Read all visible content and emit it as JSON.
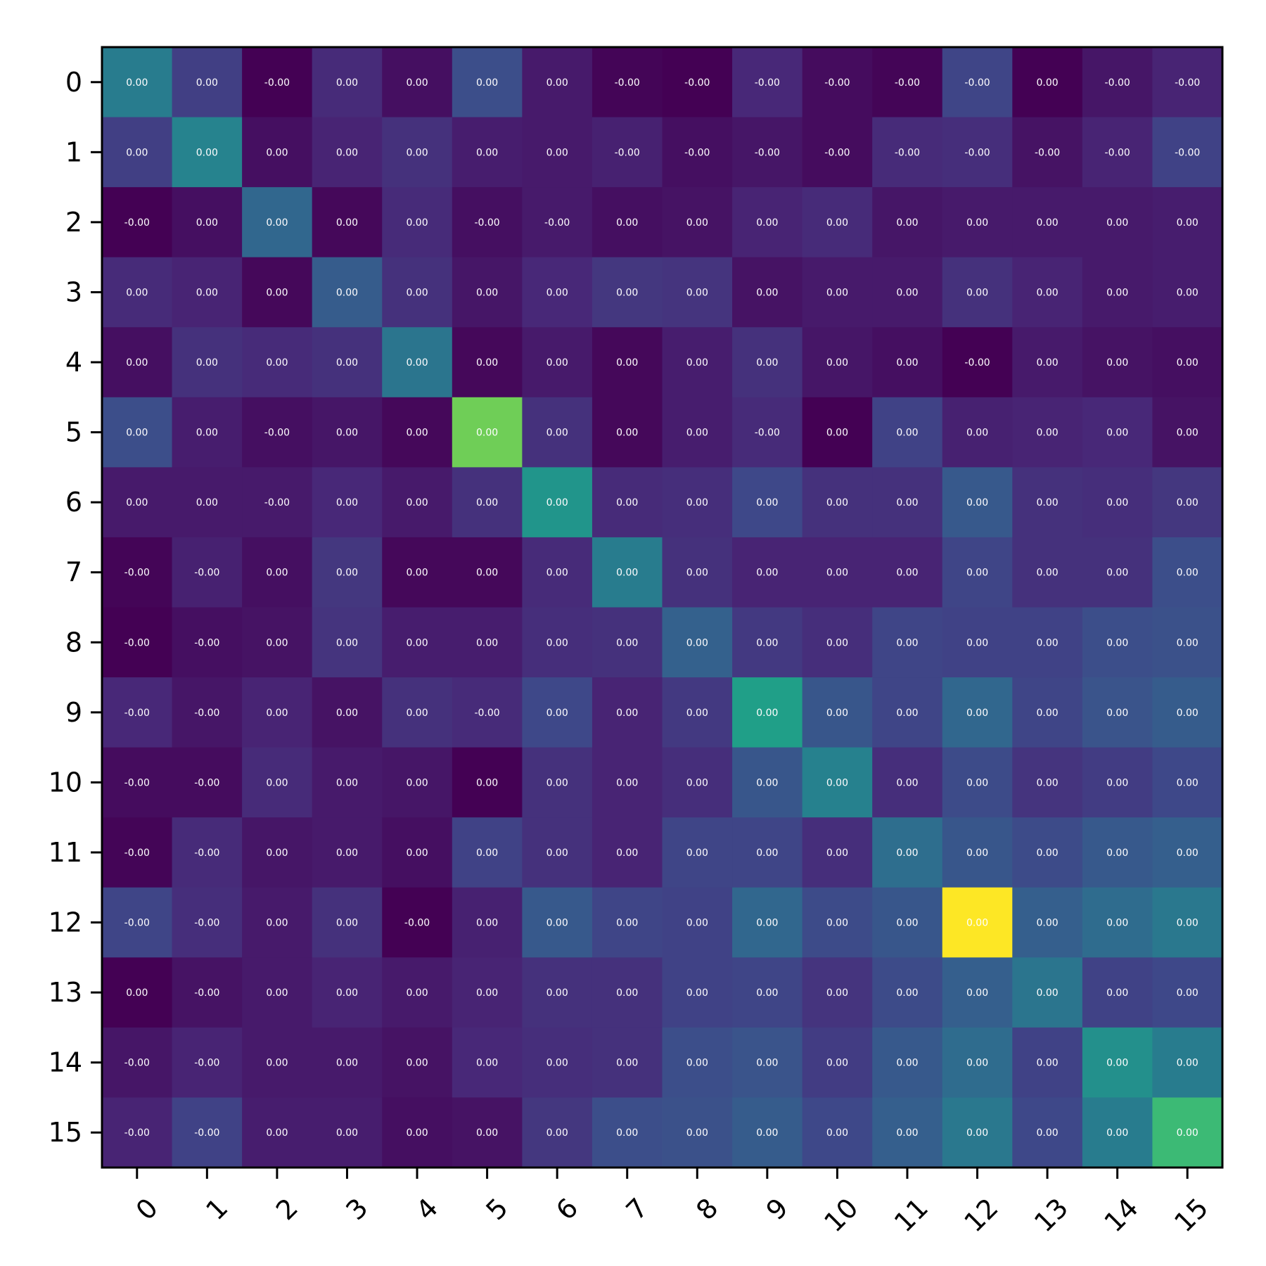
{
  "chart_data": {
    "type": "heatmap",
    "title": "",
    "xlabel": "",
    "ylabel": "",
    "colormap": "viridis",
    "grid": false,
    "x_categories": [
      "0",
      "1",
      "2",
      "3",
      "4",
      "5",
      "6",
      "7",
      "8",
      "9",
      "10",
      "11",
      "12",
      "13",
      "14",
      "15"
    ],
    "y_categories": [
      "0",
      "1",
      "2",
      "3",
      "4",
      "5",
      "6",
      "7",
      "8",
      "9",
      "10",
      "11",
      "12",
      "13",
      "14",
      "15"
    ],
    "color_intensity": [
      [
        0.42,
        0.19,
        0.0,
        0.12,
        0.04,
        0.24,
        0.07,
        0.01,
        0.0,
        0.11,
        0.03,
        0.01,
        0.21,
        0.0,
        0.06,
        0.1
      ],
      [
        0.19,
        0.45,
        0.04,
        0.1,
        0.14,
        0.08,
        0.07,
        0.09,
        0.04,
        0.06,
        0.03,
        0.12,
        0.13,
        0.05,
        0.1,
        0.2
      ],
      [
        0.0,
        0.04,
        0.33,
        0.02,
        0.12,
        0.04,
        0.07,
        0.04,
        0.05,
        0.1,
        0.12,
        0.06,
        0.07,
        0.07,
        0.07,
        0.08
      ],
      [
        0.12,
        0.1,
        0.02,
        0.29,
        0.14,
        0.06,
        0.11,
        0.16,
        0.15,
        0.05,
        0.07,
        0.07,
        0.14,
        0.1,
        0.07,
        0.08
      ],
      [
        0.04,
        0.14,
        0.12,
        0.14,
        0.39,
        0.02,
        0.07,
        0.02,
        0.08,
        0.14,
        0.06,
        0.04,
        0.0,
        0.07,
        0.05,
        0.04
      ],
      [
        0.24,
        0.08,
        0.04,
        0.06,
        0.02,
        0.78,
        0.14,
        0.02,
        0.08,
        0.12,
        0.0,
        0.2,
        0.09,
        0.1,
        0.11,
        0.05
      ],
      [
        0.07,
        0.07,
        0.07,
        0.11,
        0.07,
        0.14,
        0.52,
        0.12,
        0.13,
        0.22,
        0.14,
        0.14,
        0.28,
        0.14,
        0.13,
        0.16
      ],
      [
        0.01,
        0.09,
        0.04,
        0.16,
        0.02,
        0.02,
        0.12,
        0.42,
        0.14,
        0.1,
        0.1,
        0.1,
        0.21,
        0.14,
        0.14,
        0.24
      ],
      [
        0.0,
        0.04,
        0.05,
        0.15,
        0.08,
        0.08,
        0.13,
        0.14,
        0.31,
        0.17,
        0.13,
        0.21,
        0.2,
        0.2,
        0.24,
        0.25
      ],
      [
        0.11,
        0.06,
        0.1,
        0.05,
        0.14,
        0.12,
        0.22,
        0.1,
        0.17,
        0.56,
        0.27,
        0.21,
        0.33,
        0.21,
        0.26,
        0.29
      ],
      [
        0.03,
        0.03,
        0.12,
        0.07,
        0.06,
        0.0,
        0.14,
        0.1,
        0.13,
        0.27,
        0.44,
        0.13,
        0.23,
        0.15,
        0.18,
        0.22
      ],
      [
        0.01,
        0.12,
        0.06,
        0.07,
        0.04,
        0.2,
        0.14,
        0.1,
        0.21,
        0.21,
        0.13,
        0.36,
        0.27,
        0.23,
        0.28,
        0.3
      ],
      [
        0.21,
        0.13,
        0.07,
        0.14,
        0.0,
        0.09,
        0.28,
        0.21,
        0.2,
        0.33,
        0.23,
        0.27,
        1.0,
        0.3,
        0.35,
        0.4
      ],
      [
        0.0,
        0.05,
        0.07,
        0.1,
        0.07,
        0.1,
        0.14,
        0.14,
        0.2,
        0.21,
        0.15,
        0.23,
        0.3,
        0.39,
        0.2,
        0.22
      ],
      [
        0.06,
        0.1,
        0.07,
        0.07,
        0.05,
        0.11,
        0.13,
        0.14,
        0.24,
        0.26,
        0.18,
        0.28,
        0.35,
        0.2,
        0.5,
        0.42
      ],
      [
        0.1,
        0.2,
        0.08,
        0.08,
        0.04,
        0.05,
        0.16,
        0.24,
        0.25,
        0.29,
        0.22,
        0.3,
        0.4,
        0.22,
        0.42,
        0.68
      ]
    ],
    "cell_labels": [
      [
        "0.00",
        "0.00",
        "-0.00",
        "0.00",
        "0.00",
        "0.00",
        "0.00",
        "-0.00",
        "-0.00",
        "-0.00",
        "-0.00",
        "-0.00",
        "-0.00",
        "0.00",
        "-0.00",
        "-0.00"
      ],
      [
        "0.00",
        "0.00",
        "0.00",
        "0.00",
        "0.00",
        "0.00",
        "0.00",
        "-0.00",
        "-0.00",
        "-0.00",
        "-0.00",
        "-0.00",
        "-0.00",
        "-0.00",
        "-0.00",
        "-0.00"
      ],
      [
        "-0.00",
        "0.00",
        "0.00",
        "0.00",
        "0.00",
        "-0.00",
        "-0.00",
        "0.00",
        "0.00",
        "0.00",
        "0.00",
        "0.00",
        "0.00",
        "0.00",
        "0.00",
        "0.00"
      ],
      [
        "0.00",
        "0.00",
        "0.00",
        "0.00",
        "0.00",
        "0.00",
        "0.00",
        "0.00",
        "0.00",
        "0.00",
        "0.00",
        "0.00",
        "0.00",
        "0.00",
        "0.00",
        "0.00"
      ],
      [
        "0.00",
        "0.00",
        "0.00",
        "0.00",
        "0.00",
        "0.00",
        "0.00",
        "0.00",
        "0.00",
        "0.00",
        "0.00",
        "0.00",
        "-0.00",
        "0.00",
        "0.00",
        "0.00"
      ],
      [
        "0.00",
        "0.00",
        "-0.00",
        "0.00",
        "0.00",
        "0.00",
        "0.00",
        "0.00",
        "0.00",
        "-0.00",
        "0.00",
        "0.00",
        "0.00",
        "0.00",
        "0.00",
        "0.00"
      ],
      [
        "0.00",
        "0.00",
        "-0.00",
        "0.00",
        "0.00",
        "0.00",
        "0.00",
        "0.00",
        "0.00",
        "0.00",
        "0.00",
        "0.00",
        "0.00",
        "0.00",
        "0.00",
        "0.00"
      ],
      [
        "-0.00",
        "-0.00",
        "0.00",
        "0.00",
        "0.00",
        "0.00",
        "0.00",
        "0.00",
        "0.00",
        "0.00",
        "0.00",
        "0.00",
        "0.00",
        "0.00",
        "0.00",
        "0.00"
      ],
      [
        "-0.00",
        "-0.00",
        "0.00",
        "0.00",
        "0.00",
        "0.00",
        "0.00",
        "0.00",
        "0.00",
        "0.00",
        "0.00",
        "0.00",
        "0.00",
        "0.00",
        "0.00",
        "0.00"
      ],
      [
        "-0.00",
        "-0.00",
        "0.00",
        "0.00",
        "0.00",
        "-0.00",
        "0.00",
        "0.00",
        "0.00",
        "0.00",
        "0.00",
        "0.00",
        "0.00",
        "0.00",
        "0.00",
        "0.00"
      ],
      [
        "-0.00",
        "-0.00",
        "0.00",
        "0.00",
        "0.00",
        "0.00",
        "0.00",
        "0.00",
        "0.00",
        "0.00",
        "0.00",
        "0.00",
        "0.00",
        "0.00",
        "0.00",
        "0.00"
      ],
      [
        "-0.00",
        "-0.00",
        "0.00",
        "0.00",
        "0.00",
        "0.00",
        "0.00",
        "0.00",
        "0.00",
        "0.00",
        "0.00",
        "0.00",
        "0.00",
        "0.00",
        "0.00",
        "0.00"
      ],
      [
        "-0.00",
        "-0.00",
        "0.00",
        "0.00",
        "-0.00",
        "0.00",
        "0.00",
        "0.00",
        "0.00",
        "0.00",
        "0.00",
        "0.00",
        "0.00",
        "0.00",
        "0.00",
        "0.00"
      ],
      [
        "0.00",
        "-0.00",
        "0.00",
        "0.00",
        "0.00",
        "0.00",
        "0.00",
        "0.00",
        "0.00",
        "0.00",
        "0.00",
        "0.00",
        "0.00",
        "0.00",
        "0.00",
        "0.00"
      ],
      [
        "-0.00",
        "-0.00",
        "0.00",
        "0.00",
        "0.00",
        "0.00",
        "0.00",
        "0.00",
        "0.00",
        "0.00",
        "0.00",
        "0.00",
        "0.00",
        "0.00",
        "0.00",
        "0.00"
      ],
      [
        "-0.00",
        "-0.00",
        "0.00",
        "0.00",
        "0.00",
        "0.00",
        "0.00",
        "0.00",
        "0.00",
        "0.00",
        "0.00",
        "0.00",
        "0.00",
        "0.00",
        "0.00",
        "0.00"
      ]
    ]
  }
}
